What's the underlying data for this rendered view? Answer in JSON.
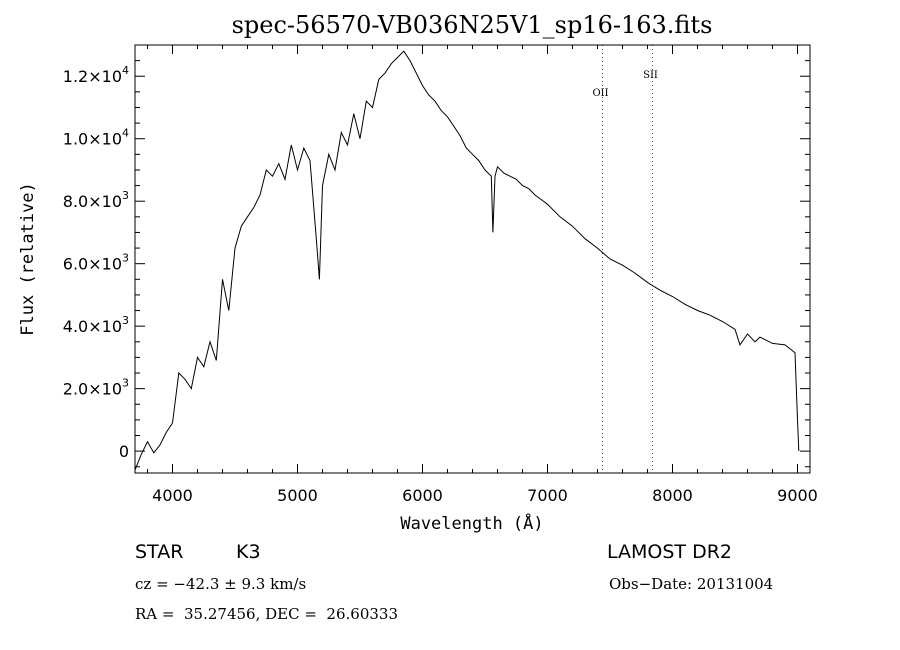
{
  "chart_data": {
    "type": "line",
    "title": "spec-56570-VB036N25V1_sp16-163.fits",
    "xlabel": "Wavelength (Å)",
    "ylabel": "Flux (relative)",
    "xlim": [
      3700,
      9100
    ],
    "ylim": [
      -700,
      13000
    ],
    "x_ticks": [
      4000,
      5000,
      6000,
      7000,
      8000,
      9000
    ],
    "y_ticks": [
      {
        "value": 0,
        "mantissa": "0",
        "exp": ""
      },
      {
        "value": 2000,
        "mantissa": "2.0×10",
        "exp": "3"
      },
      {
        "value": 4000,
        "mantissa": "4.0×10",
        "exp": "3"
      },
      {
        "value": 6000,
        "mantissa": "6.0×10",
        "exp": "3"
      },
      {
        "value": 8000,
        "mantissa": "8.0×10",
        "exp": "3"
      },
      {
        "value": 10000,
        "mantissa": "1.0×10",
        "exp": "4"
      },
      {
        "value": 12000,
        "mantissa": "1.2×10",
        "exp": "4"
      }
    ],
    "grid": false,
    "series": [
      {
        "x": [
          3700,
          3750,
          3800,
          3850,
          3900,
          3950,
          4000,
          4050,
          4100,
          4150,
          4200,
          4250,
          4300,
          4350,
          4400,
          4450,
          4500,
          4550,
          4600,
          4650,
          4700,
          4750,
          4800,
          4850,
          4900,
          4950,
          5000,
          5050,
          5100,
          5150,
          5175,
          5200,
          5250,
          5300,
          5350,
          5400,
          5450,
          5500,
          5550,
          5600,
          5650,
          5700,
          5750,
          5800,
          5850,
          5900,
          5950,
          6000,
          6050,
          6100,
          6150,
          6200,
          6250,
          6300,
          6350,
          6400,
          6450,
          6500,
          6550,
          6563,
          6580,
          6600,
          6650,
          6700,
          6750,
          6800,
          6850,
          6900,
          6950,
          7000,
          7100,
          7200,
          7300,
          7400,
          7500,
          7600,
          7700,
          7800,
          7900,
          8000,
          8100,
          8200,
          8300,
          8400,
          8500,
          8540,
          8600,
          8660,
          8700,
          8800,
          8900,
          8980,
          9000,
          9010
        ],
        "y": [
          -600,
          -100,
          300,
          -50,
          200,
          600,
          900,
          2500,
          2300,
          2000,
          3000,
          2700,
          3500,
          2900,
          5500,
          4500,
          6500,
          7200,
          7500,
          7800,
          8200,
          9000,
          8800,
          9200,
          8700,
          9800,
          9000,
          9700,
          9300,
          6800,
          5500,
          8500,
          9500,
          9000,
          10200,
          9800,
          10800,
          10000,
          11200,
          11000,
          11900,
          12100,
          12400,
          12600,
          12800,
          12500,
          12100,
          11700,
          11400,
          11200,
          10900,
          10700,
          10400,
          10100,
          9700,
          9500,
          9300,
          9000,
          8800,
          7000,
          8800,
          9100,
          8900,
          8800,
          8700,
          8500,
          8400,
          8200,
          8050,
          7900,
          7500,
          7200,
          6800,
          6500,
          6150,
          5950,
          5700,
          5400,
          5150,
          4950,
          4700,
          4500,
          4350,
          4150,
          3900,
          3400,
          3750,
          3500,
          3650,
          3450,
          3400,
          3150,
          1000,
          0
        ]
      }
    ],
    "annotations": [
      {
        "label": "OII",
        "x": 7440
      },
      {
        "label": "SII",
        "x": 7840
      }
    ]
  },
  "info": {
    "object_class": "STAR",
    "subclass": "K3",
    "survey": "LAMOST DR2",
    "cz": "cz = −42.3 ± 9.3 km/s",
    "obs_date": "Obs−Date: 20131004",
    "coords": "RA =  35.27456, DEC =  26.60333"
  }
}
